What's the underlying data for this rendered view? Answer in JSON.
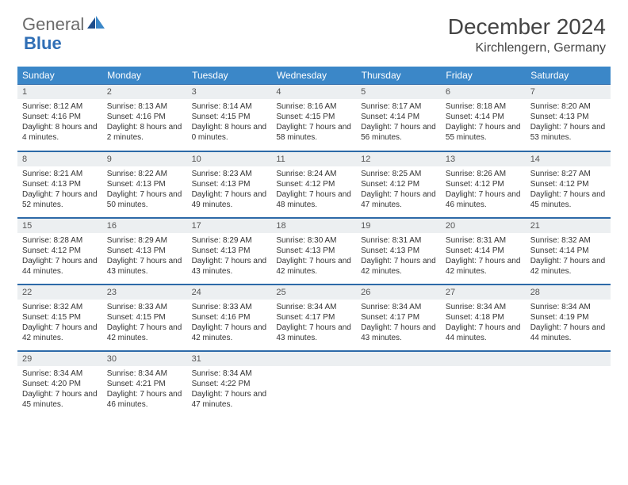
{
  "logo": {
    "general": "General",
    "blue": "Blue"
  },
  "title": "December 2024",
  "location": "Kirchlengern, Germany",
  "colors": {
    "header_bg": "#3b87c8",
    "border": "#2d6aa8",
    "daynum_bg": "#eceff1",
    "text": "#333333",
    "logo_gray": "#6b6b6b",
    "logo_blue": "#2f6eb5"
  },
  "dayHeaders": [
    "Sunday",
    "Monday",
    "Tuesday",
    "Wednesday",
    "Thursday",
    "Friday",
    "Saturday"
  ],
  "weeks": [
    [
      {
        "n": "1",
        "sr": "Sunrise: 8:12 AM",
        "ss": "Sunset: 4:16 PM",
        "dl": "Daylight: 8 hours and 4 minutes."
      },
      {
        "n": "2",
        "sr": "Sunrise: 8:13 AM",
        "ss": "Sunset: 4:16 PM",
        "dl": "Daylight: 8 hours and 2 minutes."
      },
      {
        "n": "3",
        "sr": "Sunrise: 8:14 AM",
        "ss": "Sunset: 4:15 PM",
        "dl": "Daylight: 8 hours and 0 minutes."
      },
      {
        "n": "4",
        "sr": "Sunrise: 8:16 AM",
        "ss": "Sunset: 4:15 PM",
        "dl": "Daylight: 7 hours and 58 minutes."
      },
      {
        "n": "5",
        "sr": "Sunrise: 8:17 AM",
        "ss": "Sunset: 4:14 PM",
        "dl": "Daylight: 7 hours and 56 minutes."
      },
      {
        "n": "6",
        "sr": "Sunrise: 8:18 AM",
        "ss": "Sunset: 4:14 PM",
        "dl": "Daylight: 7 hours and 55 minutes."
      },
      {
        "n": "7",
        "sr": "Sunrise: 8:20 AM",
        "ss": "Sunset: 4:13 PM",
        "dl": "Daylight: 7 hours and 53 minutes."
      }
    ],
    [
      {
        "n": "8",
        "sr": "Sunrise: 8:21 AM",
        "ss": "Sunset: 4:13 PM",
        "dl": "Daylight: 7 hours and 52 minutes."
      },
      {
        "n": "9",
        "sr": "Sunrise: 8:22 AM",
        "ss": "Sunset: 4:13 PM",
        "dl": "Daylight: 7 hours and 50 minutes."
      },
      {
        "n": "10",
        "sr": "Sunrise: 8:23 AM",
        "ss": "Sunset: 4:13 PM",
        "dl": "Daylight: 7 hours and 49 minutes."
      },
      {
        "n": "11",
        "sr": "Sunrise: 8:24 AM",
        "ss": "Sunset: 4:12 PM",
        "dl": "Daylight: 7 hours and 48 minutes."
      },
      {
        "n": "12",
        "sr": "Sunrise: 8:25 AM",
        "ss": "Sunset: 4:12 PM",
        "dl": "Daylight: 7 hours and 47 minutes."
      },
      {
        "n": "13",
        "sr": "Sunrise: 8:26 AM",
        "ss": "Sunset: 4:12 PM",
        "dl": "Daylight: 7 hours and 46 minutes."
      },
      {
        "n": "14",
        "sr": "Sunrise: 8:27 AM",
        "ss": "Sunset: 4:12 PM",
        "dl": "Daylight: 7 hours and 45 minutes."
      }
    ],
    [
      {
        "n": "15",
        "sr": "Sunrise: 8:28 AM",
        "ss": "Sunset: 4:12 PM",
        "dl": "Daylight: 7 hours and 44 minutes."
      },
      {
        "n": "16",
        "sr": "Sunrise: 8:29 AM",
        "ss": "Sunset: 4:13 PM",
        "dl": "Daylight: 7 hours and 43 minutes."
      },
      {
        "n": "17",
        "sr": "Sunrise: 8:29 AM",
        "ss": "Sunset: 4:13 PM",
        "dl": "Daylight: 7 hours and 43 minutes."
      },
      {
        "n": "18",
        "sr": "Sunrise: 8:30 AM",
        "ss": "Sunset: 4:13 PM",
        "dl": "Daylight: 7 hours and 42 minutes."
      },
      {
        "n": "19",
        "sr": "Sunrise: 8:31 AM",
        "ss": "Sunset: 4:13 PM",
        "dl": "Daylight: 7 hours and 42 minutes."
      },
      {
        "n": "20",
        "sr": "Sunrise: 8:31 AM",
        "ss": "Sunset: 4:14 PM",
        "dl": "Daylight: 7 hours and 42 minutes."
      },
      {
        "n": "21",
        "sr": "Sunrise: 8:32 AM",
        "ss": "Sunset: 4:14 PM",
        "dl": "Daylight: 7 hours and 42 minutes."
      }
    ],
    [
      {
        "n": "22",
        "sr": "Sunrise: 8:32 AM",
        "ss": "Sunset: 4:15 PM",
        "dl": "Daylight: 7 hours and 42 minutes."
      },
      {
        "n": "23",
        "sr": "Sunrise: 8:33 AM",
        "ss": "Sunset: 4:15 PM",
        "dl": "Daylight: 7 hours and 42 minutes."
      },
      {
        "n": "24",
        "sr": "Sunrise: 8:33 AM",
        "ss": "Sunset: 4:16 PM",
        "dl": "Daylight: 7 hours and 42 minutes."
      },
      {
        "n": "25",
        "sr": "Sunrise: 8:34 AM",
        "ss": "Sunset: 4:17 PM",
        "dl": "Daylight: 7 hours and 43 minutes."
      },
      {
        "n": "26",
        "sr": "Sunrise: 8:34 AM",
        "ss": "Sunset: 4:17 PM",
        "dl": "Daylight: 7 hours and 43 minutes."
      },
      {
        "n": "27",
        "sr": "Sunrise: 8:34 AM",
        "ss": "Sunset: 4:18 PM",
        "dl": "Daylight: 7 hours and 44 minutes."
      },
      {
        "n": "28",
        "sr": "Sunrise: 8:34 AM",
        "ss": "Sunset: 4:19 PM",
        "dl": "Daylight: 7 hours and 44 minutes."
      }
    ],
    [
      {
        "n": "29",
        "sr": "Sunrise: 8:34 AM",
        "ss": "Sunset: 4:20 PM",
        "dl": "Daylight: 7 hours and 45 minutes."
      },
      {
        "n": "30",
        "sr": "Sunrise: 8:34 AM",
        "ss": "Sunset: 4:21 PM",
        "dl": "Daylight: 7 hours and 46 minutes."
      },
      {
        "n": "31",
        "sr": "Sunrise: 8:34 AM",
        "ss": "Sunset: 4:22 PM",
        "dl": "Daylight: 7 hours and 47 minutes."
      },
      {
        "empty": true
      },
      {
        "empty": true
      },
      {
        "empty": true
      },
      {
        "empty": true
      }
    ]
  ]
}
